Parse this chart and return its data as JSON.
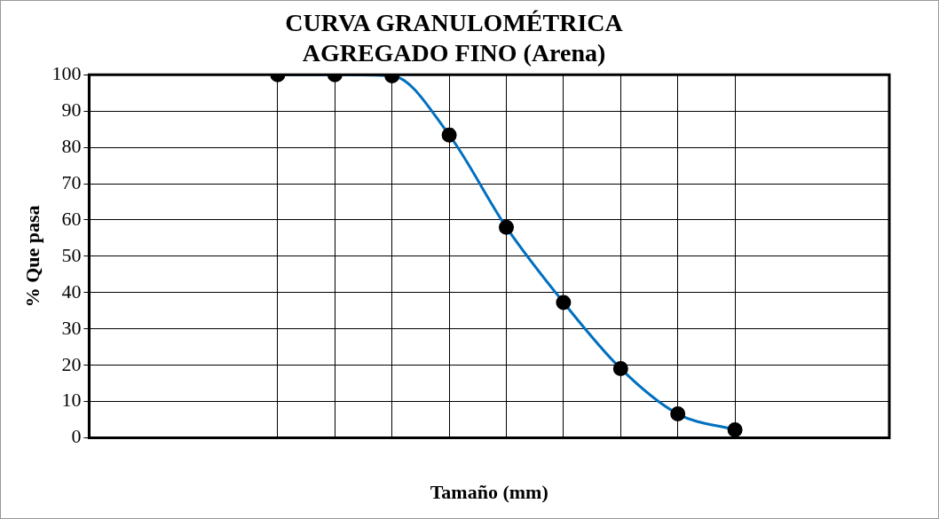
{
  "chart_data": {
    "type": "line",
    "title": "CURVA GRANULOMÉTRICA\nAGREGADO FINO (Arena)",
    "xlabel": "Tamaño (mm)",
    "ylabel": "% Que pasa",
    "categories": [
      null,
      null,
      null,
      null,
      null,
      null,
      null,
      null,
      null
    ],
    "series": [
      {
        "color": "#0070c0",
        "values": [
          100,
          100,
          99.7,
          83.4,
          58,
          37.3,
          19.1,
          6.6,
          2.2
        ]
      }
    ],
    "ylim": [
      0,
      100
    ],
    "yticks": [
      0,
      10,
      20,
      30,
      40,
      50,
      60,
      70,
      80,
      90,
      100
    ],
    "grid": true,
    "marker": "circle",
    "line_style": "solid",
    "tick_labels": "y",
    "legend": false
  }
}
